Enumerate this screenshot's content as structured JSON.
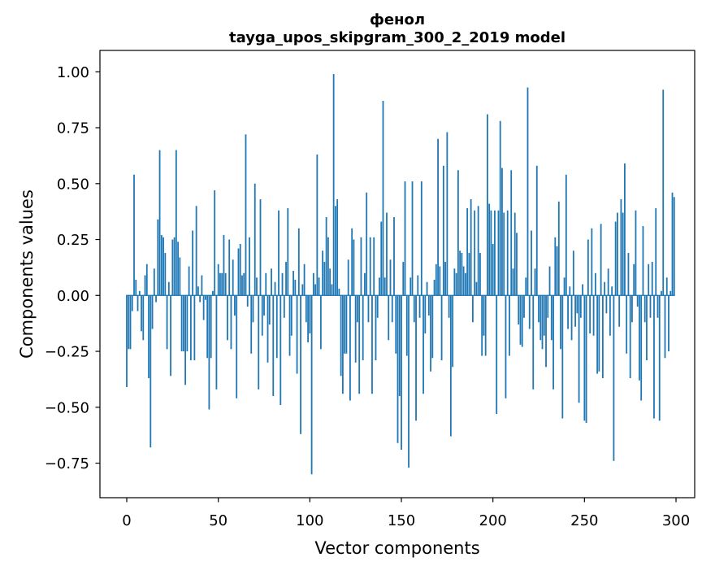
{
  "figure": {
    "background": "#ffffff"
  },
  "title": {
    "line1": "фенол",
    "line2": "tayga_upos_skipgram_300_2_2019 model"
  },
  "axes": {
    "xlabel": "Vector components",
    "ylabel": "Components values"
  },
  "chart_data": {
    "type": "bar",
    "title": "фенол\ntayga_upos_skipgram_300_2_2019 model",
    "xlabel": "Vector components",
    "ylabel": "Components values",
    "grid": false,
    "legend": "none",
    "bar_color": "#1f77b4",
    "axis_color": "#000000",
    "bar_width_units": 0.8,
    "n_components": 300,
    "x_start": 0,
    "xlim": [
      -14.65,
      310.2
    ],
    "ylim": [
      -0.9044,
      1.0956
    ],
    "x_ticks": [
      0,
      50,
      100,
      150,
      200,
      250,
      300
    ],
    "x_tick_labels": [
      "0",
      "50",
      "100",
      "150",
      "200",
      "250",
      "300"
    ],
    "y_ticks": [
      1.0,
      0.75,
      0.5,
      0.25,
      0.0,
      -0.25,
      -0.5,
      -0.75
    ],
    "y_tick_labels": [
      "1.00",
      "0.75",
      "0.50",
      "0.25",
      "0.00",
      "−0.25",
      "−0.50",
      "−0.75"
    ],
    "values": [
      -0.41,
      -0.24,
      -0.24,
      -0.07,
      0.54,
      0.07,
      -0.07,
      0.02,
      -0.16,
      -0.2,
      0.09,
      0.14,
      -0.37,
      -0.68,
      -0.15,
      0.12,
      -0.03,
      0.34,
      0.65,
      0.27,
      0.26,
      0.19,
      -0.24,
      0.06,
      -0.36,
      0.25,
      0.26,
      0.65,
      0.24,
      0.17,
      -0.25,
      -0.25,
      -0.4,
      -0.25,
      0.13,
      -0.29,
      0.29,
      -0.29,
      0.4,
      0.04,
      -0.03,
      0.09,
      -0.11,
      -0.02,
      -0.28,
      -0.51,
      -0.28,
      0.02,
      0.47,
      -0.42,
      0.14,
      0.1,
      0.1,
      0.27,
      0.1,
      -0.2,
      0.25,
      -0.24,
      0.16,
      -0.09,
      -0.46,
      0.21,
      0.23,
      0.09,
      0.1,
      0.72,
      -0.05,
      0.26,
      -0.26,
      -0.12,
      0.5,
      0.08,
      -0.42,
      0.43,
      -0.18,
      -0.09,
      0.1,
      -0.3,
      -0.13,
      0.12,
      -0.45,
      0.06,
      -0.28,
      0.38,
      -0.49,
      0.1,
      -0.1,
      0.15,
      0.39,
      -0.27,
      -0.18,
      0.11,
      0.07,
      -0.35,
      0.3,
      -0.62,
      0.05,
      0.14,
      -0.12,
      -0.21,
      -0.17,
      -0.8,
      0.1,
      0.05,
      0.63,
      0.08,
      -0.24,
      0.2,
      0.15,
      0.35,
      0.26,
      0.12,
      0.05,
      0.99,
      0.4,
      0.43,
      0.03,
      -0.36,
      -0.44,
      -0.26,
      -0.26,
      0.16,
      -0.47,
      0.3,
      0.25,
      -0.3,
      -0.12,
      -0.44,
      0.26,
      -0.29,
      0.1,
      0.46,
      -0.12,
      0.26,
      -0.44,
      0.26,
      -0.29,
      -0.1,
      0.08,
      0.33,
      0.87,
      0.08,
      0.37,
      -0.2,
      0.16,
      -0.12,
      0.35,
      -0.26,
      -0.66,
      -0.45,
      -0.69,
      0.15,
      0.51,
      -0.27,
      -0.77,
      0.08,
      0.51,
      -0.12,
      -0.56,
      0.09,
      -0.1,
      0.51,
      -0.44,
      -0.17,
      0.06,
      -0.09,
      -0.34,
      -0.28,
      0.07,
      0.14,
      0.7,
      0.13,
      -0.29,
      0.58,
      0.15,
      0.73,
      -0.1,
      -0.63,
      -0.32,
      0.12,
      0.1,
      0.56,
      0.2,
      0.19,
      0.13,
      0.1,
      0.39,
      0.19,
      0.43,
      -0.12,
      0.38,
      0.06,
      0.4,
      0.19,
      -0.27,
      -0.18,
      -0.27,
      0.81,
      0.41,
      0.38,
      0.23,
      0.38,
      -0.53,
      0.38,
      0.78,
      0.57,
      0.37,
      -0.46,
      0.38,
      -0.27,
      0.56,
      0.12,
      0.37,
      0.28,
      -0.13,
      -0.22,
      -0.23,
      -0.1,
      0.08,
      0.93,
      -0.15,
      0.29,
      -0.42,
      0.12,
      0.58,
      -0.12,
      -0.2,
      -0.24,
      -0.18,
      -0.32,
      -0.1,
      0.13,
      -0.2,
      -0.42,
      0.26,
      0.22,
      0.42,
      -0.24,
      -0.55,
      0.08,
      0.54,
      -0.15,
      0.04,
      -0.2,
      0.2,
      -0.14,
      -0.08,
      -0.48,
      -0.1,
      0.05,
      -0.56,
      -0.57,
      0.25,
      -0.17,
      0.3,
      -0.18,
      0.1,
      -0.35,
      -0.34,
      0.32,
      -0.37,
      0.06,
      -0.08,
      0.12,
      -0.18,
      0.04,
      -0.74,
      0.33,
      0.37,
      -0.14,
      0.43,
      0.37,
      0.59,
      -0.26,
      0.19,
      -0.37,
      -0.12,
      0.14,
      0.38,
      -0.05,
      -0.38,
      -0.47,
      0.31,
      -0.12,
      -0.29,
      0.14,
      -0.1,
      0.15,
      -0.55,
      0.39,
      -0.1,
      -0.56,
      0.02,
      0.92,
      -0.28,
      0.08,
      -0.25,
      0.02,
      0.46,
      0.44
    ]
  }
}
